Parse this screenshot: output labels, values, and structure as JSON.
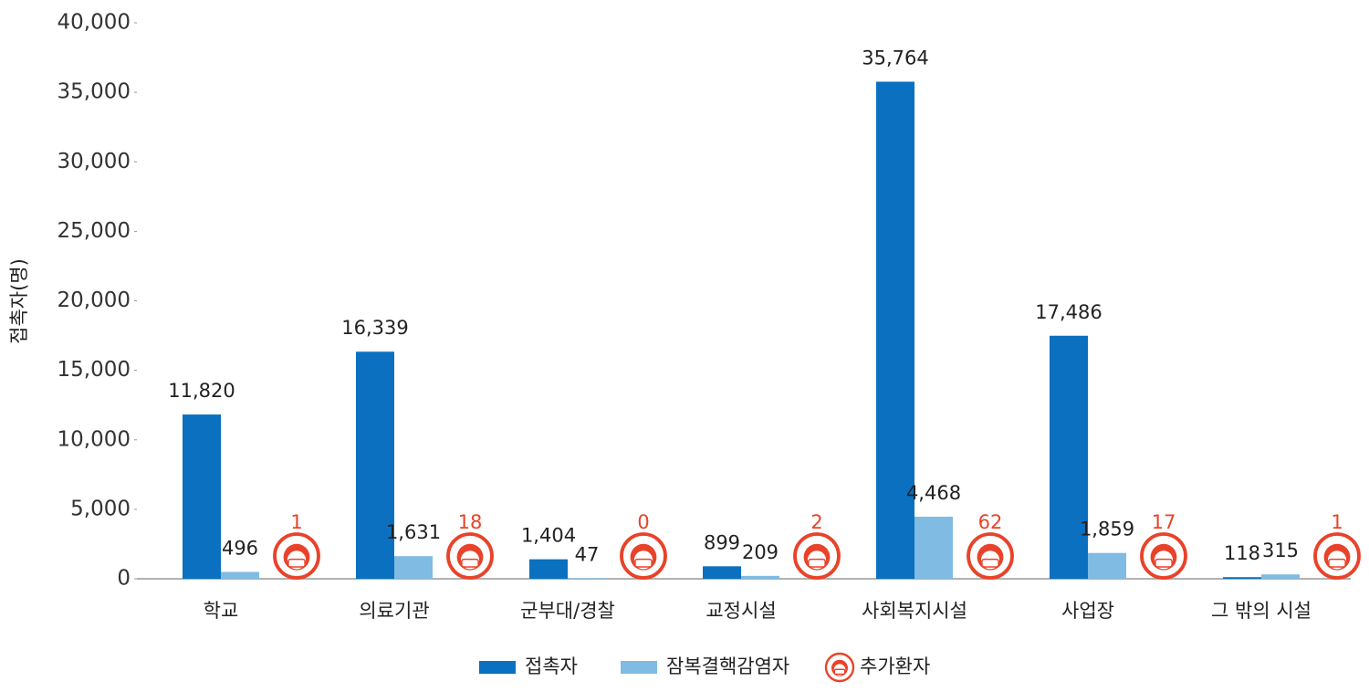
{
  "chart_data": {
    "type": "bar",
    "y_label": "접촉자(명)",
    "categories": [
      "학교",
      "의료기관",
      "군부대/경찰",
      "교정시설",
      "사회복지시설",
      "사업장",
      "그 밖의 시설"
    ],
    "series": [
      {
        "name": "접촉자",
        "color": "#0a70bf",
        "values": [
          11820,
          16339,
          1404,
          899,
          35764,
          17486,
          118
        ],
        "value_labels": [
          "11,820",
          "16,339",
          "1,404",
          "899",
          "35,764",
          "17,486",
          "118"
        ]
      },
      {
        "name": "잠복결핵감염자",
        "color": "#7fbbe3",
        "values": [
          496,
          1631,
          47,
          209,
          4468,
          1859,
          315
        ],
        "value_labels": [
          "496",
          "1,631",
          "47",
          "209",
          "4,468",
          "1,859",
          "315"
        ]
      },
      {
        "name": "추가환자",
        "color": "#e8432a",
        "marker": "icon",
        "values": [
          1,
          18,
          0,
          2,
          62,
          17,
          1
        ]
      }
    ],
    "ylim": [
      0,
      40000
    ],
    "yticks": [
      0,
      {
        "value": 5000,
        "label": "5,000"
      },
      {
        "value": 10000,
        "label": "10,000"
      },
      {
        "value": 15000,
        "label": "15,000"
      },
      {
        "value": 20000,
        "label": "20,000"
      },
      {
        "value": 25000,
        "label": "25,000"
      },
      {
        "value": 30000,
        "label": "30,000"
      },
      {
        "value": 35000,
        "label": "35,000"
      },
      {
        "value": 40000,
        "label": "40,000"
      }
    ],
    "grid": false,
    "legend": "bottom"
  }
}
